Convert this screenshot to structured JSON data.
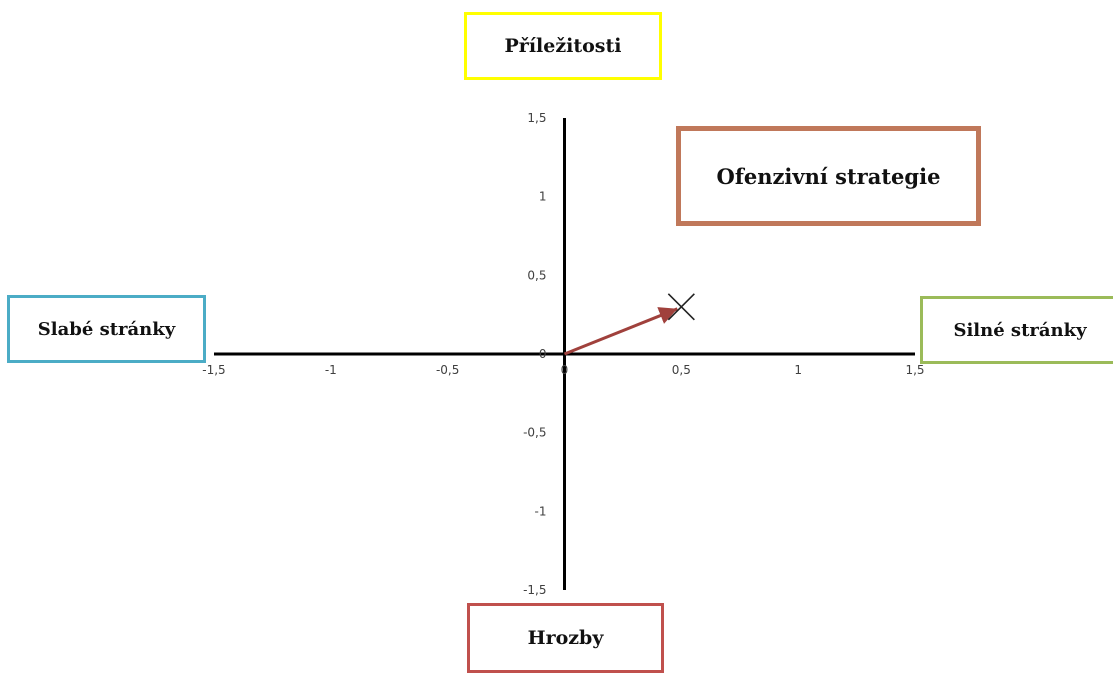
{
  "chart_data": {
    "type": "scatter",
    "title": "",
    "xlabel": "",
    "ylabel": "",
    "xlim": [
      -1.5,
      1.5
    ],
    "ylim": [
      -1.5,
      1.5
    ],
    "x_ticks": [
      "-1,5",
      "-1",
      "-0,5",
      "0",
      "0,5",
      "1",
      "1,5"
    ],
    "y_ticks": [
      "1,5",
      "1",
      "0,5",
      "0",
      "-0,5",
      "-1",
      "-1,5"
    ],
    "points": [
      {
        "x": 0.5,
        "y": 0.3,
        "marker": "x"
      }
    ],
    "vector": {
      "from": [
        0,
        0
      ],
      "to": [
        0.5,
        0.3
      ],
      "color": "#a0413c"
    },
    "grid": false,
    "legend": "none",
    "axis_color": "#000000",
    "quadrant_labels": {
      "top": "Příležitosti",
      "bottom": "Hrozby",
      "left": "Slabé stránky",
      "right": "Silné stránky"
    },
    "annotation": "Ofenzivní strategie",
    "box_colors": {
      "top": "#ffff00",
      "bottom": "#c0504d",
      "left": "#4bacc6",
      "right": "#9bbb59",
      "annotation": "#c0785a"
    }
  }
}
